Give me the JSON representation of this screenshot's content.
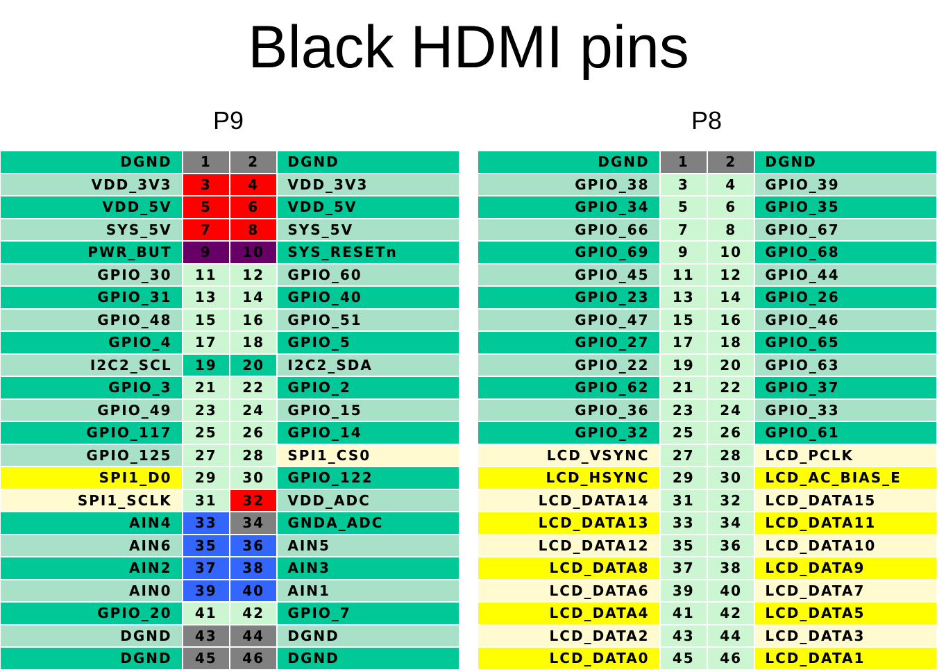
{
  "title": "Black HDMI pins",
  "colors": {
    "green": "#00c896",
    "mint": "#a8e0c8",
    "lgreen": "#ccf6d2",
    "yellow": "#ffff00",
    "cream": "#fffad0",
    "gray": "#808080",
    "red": "#ff0000",
    "purple": "#660066",
    "blue": "#3366ff"
  },
  "headers": [
    {
      "id": "p9",
      "label": "P9"
    },
    {
      "id": "p8",
      "label": "P8"
    }
  ],
  "p9": [
    {
      "ln": "DGND",
      "lnc": "green",
      "a": "1",
      "ac": "gray",
      "b": "2",
      "bc": "gray",
      "rn": "DGND",
      "rnc": "green"
    },
    {
      "ln": "VDD_3V3",
      "lnc": "mint",
      "a": "3",
      "ac": "red",
      "b": "4",
      "bc": "red",
      "rn": "VDD_3V3",
      "rnc": "mint"
    },
    {
      "ln": "VDD_5V",
      "lnc": "green",
      "a": "5",
      "ac": "red",
      "b": "6",
      "bc": "red",
      "rn": "VDD_5V",
      "rnc": "green"
    },
    {
      "ln": "SYS_5V",
      "lnc": "mint",
      "a": "7",
      "ac": "red",
      "b": "8",
      "bc": "red",
      "rn": "SYS_5V",
      "rnc": "mint"
    },
    {
      "ln": "PWR_BUT",
      "lnc": "green",
      "a": "9",
      "ac": "purple",
      "b": "10",
      "bc": "purple",
      "rn": "SYS_RESETn",
      "rnc": "green"
    },
    {
      "ln": "GPIO_30",
      "lnc": "mint",
      "a": "11",
      "ac": "lgreen",
      "b": "12",
      "bc": "lgreen",
      "rn": "GPIO_60",
      "rnc": "mint"
    },
    {
      "ln": "GPIO_31",
      "lnc": "green",
      "a": "13",
      "ac": "lgreen",
      "b": "14",
      "bc": "lgreen",
      "rn": "GPIO_40",
      "rnc": "green"
    },
    {
      "ln": "GPIO_48",
      "lnc": "mint",
      "a": "15",
      "ac": "lgreen",
      "b": "16",
      "bc": "lgreen",
      "rn": "GPIO_51",
      "rnc": "mint"
    },
    {
      "ln": "GPIO_4",
      "lnc": "green",
      "a": "17",
      "ac": "lgreen",
      "b": "18",
      "bc": "lgreen",
      "rn": "GPIO_5",
      "rnc": "green"
    },
    {
      "ln": "I2C2_SCL",
      "lnc": "mint",
      "a": "19",
      "ac": "green",
      "b": "20",
      "bc": "green",
      "rn": "I2C2_SDA",
      "rnc": "mint"
    },
    {
      "ln": "GPIO_3",
      "lnc": "green",
      "a": "21",
      "ac": "lgreen",
      "b": "22",
      "bc": "lgreen",
      "rn": "GPIO_2",
      "rnc": "green"
    },
    {
      "ln": "GPIO_49",
      "lnc": "mint",
      "a": "23",
      "ac": "lgreen",
      "b": "24",
      "bc": "lgreen",
      "rn": "GPIO_15",
      "rnc": "mint"
    },
    {
      "ln": "GPIO_117",
      "lnc": "green",
      "a": "25",
      "ac": "lgreen",
      "b": "26",
      "bc": "lgreen",
      "rn": "GPIO_14",
      "rnc": "green"
    },
    {
      "ln": "GPIO_125",
      "lnc": "mint",
      "a": "27",
      "ac": "lgreen",
      "b": "28",
      "bc": "lgreen",
      "rn": "SPI1_CS0",
      "rnc": "cream"
    },
    {
      "ln": "SPI1_D0",
      "lnc": "yellow",
      "a": "29",
      "ac": "lgreen",
      "b": "30",
      "bc": "lgreen",
      "rn": "GPIO_122",
      "rnc": "green"
    },
    {
      "ln": "SPI1_SCLK",
      "lnc": "cream",
      "a": "31",
      "ac": "lgreen",
      "b": "32",
      "bc": "red",
      "rn": "VDD_ADC",
      "rnc": "mint"
    },
    {
      "ln": "AIN4",
      "lnc": "green",
      "a": "33",
      "ac": "blue",
      "b": "34",
      "bc": "gray",
      "rn": "GNDA_ADC",
      "rnc": "green"
    },
    {
      "ln": "AIN6",
      "lnc": "mint",
      "a": "35",
      "ac": "blue",
      "b": "36",
      "bc": "blue",
      "rn": "AIN5",
      "rnc": "mint"
    },
    {
      "ln": "AIN2",
      "lnc": "green",
      "a": "37",
      "ac": "blue",
      "b": "38",
      "bc": "blue",
      "rn": "AIN3",
      "rnc": "green"
    },
    {
      "ln": "AIN0",
      "lnc": "mint",
      "a": "39",
      "ac": "blue",
      "b": "40",
      "bc": "blue",
      "rn": "AIN1",
      "rnc": "mint"
    },
    {
      "ln": "GPIO_20",
      "lnc": "green",
      "a": "41",
      "ac": "lgreen",
      "b": "42",
      "bc": "lgreen",
      "rn": "GPIO_7",
      "rnc": "green"
    },
    {
      "ln": "DGND",
      "lnc": "mint",
      "a": "43",
      "ac": "gray",
      "b": "44",
      "bc": "gray",
      "rn": "DGND",
      "rnc": "mint"
    },
    {
      "ln": "DGND",
      "lnc": "green",
      "a": "45",
      "ac": "gray",
      "b": "46",
      "bc": "gray",
      "rn": "DGND",
      "rnc": "green"
    }
  ],
  "p8": [
    {
      "ln": "DGND",
      "lnc": "green",
      "a": "1",
      "ac": "gray",
      "b": "2",
      "bc": "gray",
      "rn": "DGND",
      "rnc": "green"
    },
    {
      "ln": "GPIO_38",
      "lnc": "mint",
      "a": "3",
      "ac": "lgreen",
      "b": "4",
      "bc": "lgreen",
      "rn": "GPIO_39",
      "rnc": "mint"
    },
    {
      "ln": "GPIO_34",
      "lnc": "green",
      "a": "5",
      "ac": "lgreen",
      "b": "6",
      "bc": "lgreen",
      "rn": "GPIO_35",
      "rnc": "green"
    },
    {
      "ln": "GPIO_66",
      "lnc": "mint",
      "a": "7",
      "ac": "lgreen",
      "b": "8",
      "bc": "lgreen",
      "rn": "GPIO_67",
      "rnc": "mint"
    },
    {
      "ln": "GPIO_69",
      "lnc": "green",
      "a": "9",
      "ac": "lgreen",
      "b": "10",
      "bc": "lgreen",
      "rn": "GPIO_68",
      "rnc": "green"
    },
    {
      "ln": "GPIO_45",
      "lnc": "mint",
      "a": "11",
      "ac": "lgreen",
      "b": "12",
      "bc": "lgreen",
      "rn": "GPIO_44",
      "rnc": "mint"
    },
    {
      "ln": "GPIO_23",
      "lnc": "green",
      "a": "13",
      "ac": "lgreen",
      "b": "14",
      "bc": "lgreen",
      "rn": "GPIO_26",
      "rnc": "green"
    },
    {
      "ln": "GPIO_47",
      "lnc": "mint",
      "a": "15",
      "ac": "lgreen",
      "b": "16",
      "bc": "lgreen",
      "rn": "GPIO_46",
      "rnc": "mint"
    },
    {
      "ln": "GPIO_27",
      "lnc": "green",
      "a": "17",
      "ac": "lgreen",
      "b": "18",
      "bc": "lgreen",
      "rn": "GPIO_65",
      "rnc": "green"
    },
    {
      "ln": "GPIO_22",
      "lnc": "mint",
      "a": "19",
      "ac": "lgreen",
      "b": "20",
      "bc": "lgreen",
      "rn": "GPIO_63",
      "rnc": "mint"
    },
    {
      "ln": "GPIO_62",
      "lnc": "green",
      "a": "21",
      "ac": "lgreen",
      "b": "22",
      "bc": "lgreen",
      "rn": "GPIO_37",
      "rnc": "green"
    },
    {
      "ln": "GPIO_36",
      "lnc": "mint",
      "a": "23",
      "ac": "lgreen",
      "b": "24",
      "bc": "lgreen",
      "rn": "GPIO_33",
      "rnc": "mint"
    },
    {
      "ln": "GPIO_32",
      "lnc": "green",
      "a": "25",
      "ac": "lgreen",
      "b": "26",
      "bc": "lgreen",
      "rn": "GPIO_61",
      "rnc": "green"
    },
    {
      "ln": "LCD_VSYNC",
      "lnc": "cream",
      "a": "27",
      "ac": "lgreen",
      "b": "28",
      "bc": "lgreen",
      "rn": "LCD_PCLK",
      "rnc": "cream"
    },
    {
      "ln": "LCD_HSYNC",
      "lnc": "yellow",
      "a": "29",
      "ac": "lgreen",
      "b": "30",
      "bc": "lgreen",
      "rn": "LCD_AC_BIAS_E",
      "rnc": "yellow"
    },
    {
      "ln": "LCD_DATA14",
      "lnc": "cream",
      "a": "31",
      "ac": "lgreen",
      "b": "32",
      "bc": "lgreen",
      "rn": "LCD_DATA15",
      "rnc": "cream"
    },
    {
      "ln": "LCD_DATA13",
      "lnc": "yellow",
      "a": "33",
      "ac": "lgreen",
      "b": "34",
      "bc": "lgreen",
      "rn": "LCD_DATA11",
      "rnc": "yellow"
    },
    {
      "ln": "LCD_DATA12",
      "lnc": "cream",
      "a": "35",
      "ac": "lgreen",
      "b": "36",
      "bc": "lgreen",
      "rn": "LCD_DATA10",
      "rnc": "cream"
    },
    {
      "ln": "LCD_DATA8",
      "lnc": "yellow",
      "a": "37",
      "ac": "lgreen",
      "b": "38",
      "bc": "lgreen",
      "rn": "LCD_DATA9",
      "rnc": "yellow"
    },
    {
      "ln": "LCD_DATA6",
      "lnc": "cream",
      "a": "39",
      "ac": "lgreen",
      "b": "40",
      "bc": "lgreen",
      "rn": "LCD_DATA7",
      "rnc": "cream"
    },
    {
      "ln": "LCD_DATA4",
      "lnc": "yellow",
      "a": "41",
      "ac": "lgreen",
      "b": "42",
      "bc": "lgreen",
      "rn": "LCD_DATA5",
      "rnc": "yellow"
    },
    {
      "ln": "LCD_DATA2",
      "lnc": "cream",
      "a": "43",
      "ac": "lgreen",
      "b": "44",
      "bc": "lgreen",
      "rn": "LCD_DATA3",
      "rnc": "cream"
    },
    {
      "ln": "LCD_DATA0",
      "lnc": "yellow",
      "a": "45",
      "ac": "lgreen",
      "b": "46",
      "bc": "lgreen",
      "rn": "LCD_DATA1",
      "rnc": "yellow"
    }
  ]
}
